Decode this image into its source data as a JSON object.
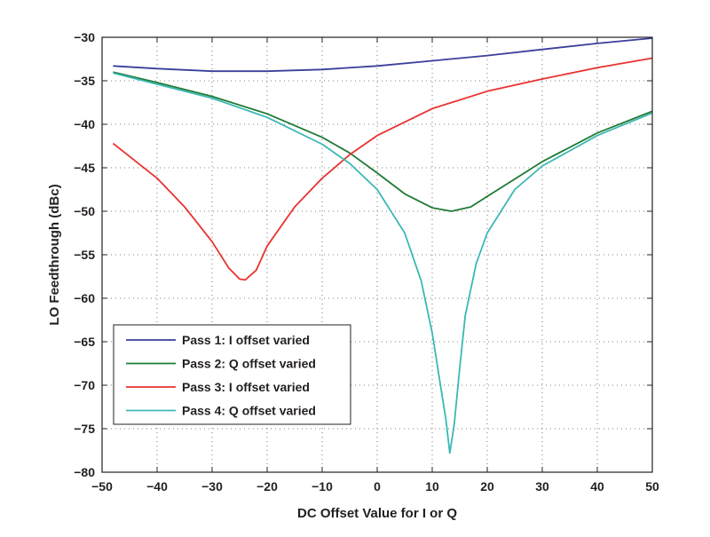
{
  "chart_data": {
    "type": "line",
    "title": "",
    "xlabel": "DC Offset Value for I or Q",
    "ylabel": "LO Feedthrough (dBc)",
    "xlim": [
      -50,
      50
    ],
    "ylim": [
      -80,
      -30
    ],
    "xticks": [
      -50,
      -40,
      -30,
      -20,
      -10,
      0,
      10,
      20,
      30,
      40,
      50
    ],
    "yticks": [
      -30,
      -35,
      -40,
      -45,
      -50,
      -55,
      -60,
      -65,
      -70,
      -75,
      -80
    ],
    "xtick_labels": [
      "−50",
      "−40",
      "−30",
      "−20",
      "−10",
      "0",
      "10",
      "20",
      "30",
      "40",
      "50"
    ],
    "ytick_labels": [
      "−30",
      "−35",
      "−40",
      "−45",
      "−50",
      "−55",
      "−60",
      "−65",
      "−70",
      "−75",
      "−80"
    ],
    "grid": true,
    "legend_placement": "lower-left",
    "series": [
      {
        "name": "Pass 1: I offset varied",
        "color": "#3a3f9a",
        "x": [
          -48,
          -40,
          -30,
          -20,
          -10,
          0,
          10,
          20,
          30,
          40,
          50
        ],
        "y": [
          -33.3,
          -33.6,
          -33.9,
          -33.9,
          -33.7,
          -33.3,
          -32.7,
          -32.1,
          -31.4,
          -30.7,
          -30.1
        ]
      },
      {
        "name": "Pass 2: Q offset varied",
        "color": "#1f7a35",
        "x": [
          -48,
          -40,
          -30,
          -20,
          -10,
          -5,
          0,
          5,
          10,
          13.5,
          17,
          20,
          25,
          30,
          40,
          50
        ],
        "y": [
          -34.0,
          -35.2,
          -36.8,
          -38.8,
          -41.5,
          -43.3,
          -45.6,
          -48.0,
          -49.6,
          -50.0,
          -49.5,
          -48.3,
          -46.3,
          -44.3,
          -41.0,
          -38.5
        ]
      },
      {
        "name": "Pass 3: I offset varied",
        "color": "#e8322f",
        "x": [
          -48,
          -40,
          -35,
          -30,
          -27,
          -25,
          -24,
          -22,
          -20,
          -15,
          -10,
          -5,
          0,
          10,
          20,
          30,
          40,
          50
        ],
        "y": [
          -42.2,
          -46.2,
          -49.5,
          -53.5,
          -56.5,
          -57.8,
          -57.9,
          -56.8,
          -54.0,
          -49.5,
          -46.2,
          -43.5,
          -41.3,
          -38.2,
          -36.2,
          -34.8,
          -33.5,
          -32.4
        ]
      },
      {
        "name": "Pass 4: Q offset varied",
        "color": "#3bb8b4",
        "x": [
          -48,
          -40,
          -30,
          -20,
          -10,
          -5,
          0,
          5,
          8,
          10,
          11.5,
          12.5,
          13.2,
          14,
          15,
          16,
          18,
          20,
          25,
          30,
          40,
          50
        ],
        "y": [
          -34.1,
          -35.4,
          -37.0,
          -39.2,
          -42.3,
          -44.5,
          -47.5,
          -52.5,
          -58.0,
          -64.0,
          -70.0,
          -74.0,
          -77.8,
          -74.5,
          -68.0,
          -62.0,
          -56.0,
          -52.5,
          -47.5,
          -44.8,
          -41.3,
          -38.7
        ]
      }
    ]
  }
}
